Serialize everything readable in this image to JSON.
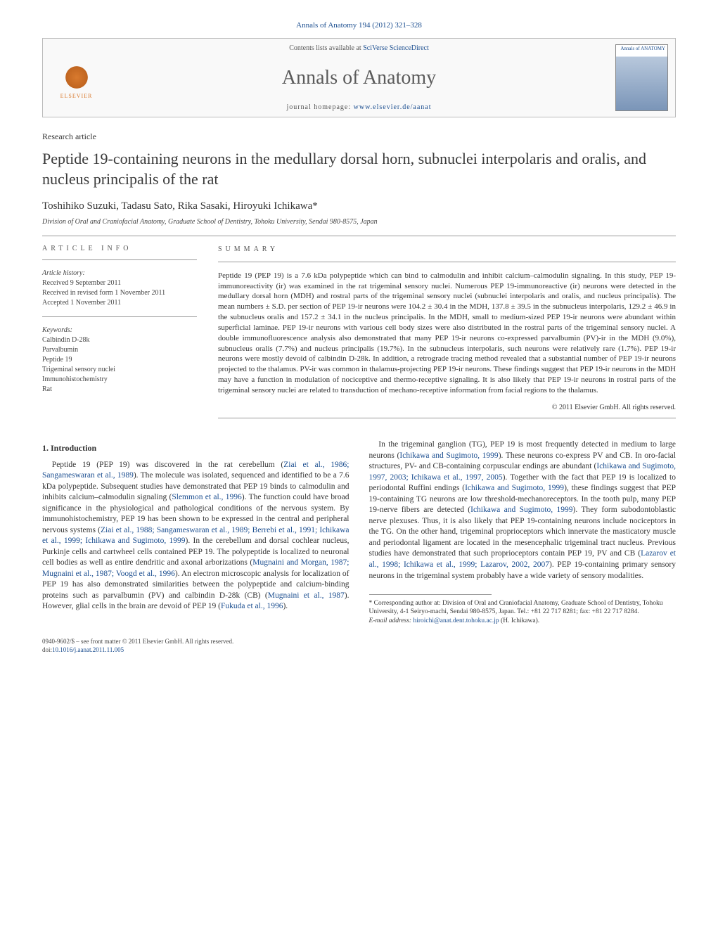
{
  "journal_ref": "Annals of Anatomy 194 (2012) 321–328",
  "header": {
    "contents_prefix": "Contents lists available at ",
    "contents_link": "SciVerse ScienceDirect",
    "journal_title": "Annals of Anatomy",
    "homepage_prefix": "journal homepage: ",
    "homepage_link": "www.elsevier.de/aanat",
    "publisher": "ELSEVIER",
    "cover_label": "Annals of ANATOMY"
  },
  "article_type": "Research article",
  "title": "Peptide 19-containing neurons in the medullary dorsal horn, subnuclei interpolaris and oralis, and nucleus principalis of the rat",
  "authors": "Toshihiko Suzuki, Tadasu Sato, Rika Sasaki, Hiroyuki Ichikawa*",
  "affiliation": "Division of Oral and Craniofacial Anatomy, Graduate School of Dentistry, Tohoku University, Sendai 980-8575, Japan",
  "info": {
    "heading": "article info",
    "history_label": "Article history:",
    "history": [
      "Received 9 September 2011",
      "Received in revised form 1 November 2011",
      "Accepted 1 November 2011"
    ],
    "keywords_label": "Keywords:",
    "keywords": [
      "Calbindin D-28k",
      "Parvalbumin",
      "Peptide 19",
      "Trigeminal sensory nuclei",
      "Immunohistochemistry",
      "Rat"
    ]
  },
  "abstract": {
    "heading": "summary",
    "text": "Peptide 19 (PEP 19) is a 7.6 kDa polypeptide which can bind to calmodulin and inhibit calcium–calmodulin signaling. In this study, PEP 19-immunoreactivity (ir) was examined in the rat trigeminal sensory nuclei. Numerous PEP 19-immunoreactive (ir) neurons were detected in the medullary dorsal horn (MDH) and rostral parts of the trigeminal sensory nuclei (subnuclei interpolaris and oralis, and nucleus principalis). The mean numbers ± S.D. per section of PEP 19-ir neurons were 104.2 ± 30.4 in the MDH, 137.8 ± 39.5 in the subnucleus interpolaris, 129.2 ± 46.9 in the subnucleus oralis and 157.2 ± 34.1 in the nucleus principalis. In the MDH, small to medium-sized PEP 19-ir neurons were abundant within superficial laminae. PEP 19-ir neurons with various cell body sizes were also distributed in the rostral parts of the trigeminal sensory nuclei. A double immunofluorescence analysis also demonstrated that many PEP 19-ir neurons co-expressed parvalbumin (PV)-ir in the MDH (9.0%), subnucleus oralis (7.7%) and nucleus principalis (19.7%). In the subnucleus interpolaris, such neurons were relatively rare (1.7%). PEP 19-ir neurons were mostly devoid of calbindin D-28k. In addition, a retrograde tracing method revealed that a substantial number of PEP 19-ir neurons projected to the thalamus. PV-ir was common in thalamus-projecting PEP 19-ir neurons. These findings suggest that PEP 19-ir neurons in the MDH may have a function in modulation of nociceptive and thermo-receptive signaling. It is also likely that PEP 19-ir neurons in rostral parts of the trigeminal sensory nuclei are related to transduction of mechano-receptive information from facial regions to the thalamus.",
    "copyright": "© 2011 Elsevier GmbH. All rights reserved."
  },
  "body": {
    "section_heading": "1. Introduction",
    "p1_a": "Peptide 19 (PEP 19) was discovered in the rat cerebellum (",
    "p1_link1": "Ziai et al., 1986; Sangameswaran et al., 1989",
    "p1_b": "). The molecule was isolated, sequenced and identified to be a 7.6 kDa polypeptide. Subsequent studies have demonstrated that PEP 19 binds to calmodulin and inhibits calcium–calmodulin signaling (",
    "p1_link2": "Slemmon et al., 1996",
    "p1_c": "). The function could have broad significance in the physiological and pathological conditions of the nervous system. By immunohistochemistry, PEP 19 has been shown to be expressed in the central and peripheral nervous systems (",
    "p1_link3": "Ziai et al., 1988; Sangameswaran et al., 1989; Berrebi et al., 1991; Ichikawa et al., 1999; Ichikawa and Sugimoto, 1999",
    "p1_d": "). In the cerebellum and dorsal cochlear nucleus, Purkinje cells and cartwheel cells contained PEP 19. The polypeptide is localized to neuronal cell bodies as well as entire dendritic and axonal arborizations (",
    "p1_link4": "Mugnaini and Morgan, 1987; Mugnaini et al., 1987; Voogd et al., 1996",
    "p1_e": "). An electron microscopic analysis for localization of PEP 19 has also demonstrated similarities between the polypeptide and calcium-binding proteins such as parvalbumin (PV) and calbindin D-28k (CB) (",
    "p1_link5": "Mugnaini et al., 1987",
    "p1_f": "). However, glial cells in the brain are devoid of PEP 19 (",
    "p1_link6": "Fukuda et al., 1996",
    "p1_g": ").",
    "p2_a": "In the trigeminal ganglion (TG), PEP 19 is most frequently detected in medium to large neurons (",
    "p2_link1": "Ichikawa and Sugimoto, 1999",
    "p2_b": "). These neurons co-express PV and CB. In oro-facial structures, PV- and CB-containing corpuscular endings are abundant (",
    "p2_link2": "Ichikawa and Sugimoto, 1997, 2003; Ichikawa et al., 1997, 2005",
    "p2_c": "). Together with the fact that PEP 19 is localized to periodontal Ruffini endings (",
    "p2_link3": "Ichikawa and Sugimoto, 1999",
    "p2_d": "), these findings suggest that PEP 19-containing TG neurons are low threshold-mechanoreceptors. In the tooth pulp, many PEP 19-nerve fibers are detected (",
    "p2_link4": "Ichikawa and Sugimoto, 1999",
    "p2_e": "). They form subodontoblastic nerve plexuses. Thus, it is also likely that PEP 19-containing neurons include nociceptors in the TG. On the other hand, trigeminal proprioceptors which innervate the masticatory muscle and periodontal ligament are located in the mesencephalic trigeminal tract nucleus. Previous studies have demonstrated that such proprioceptors contain PEP 19, PV and CB (",
    "p2_link5": "Lazarov et al., 1998; Ichikawa et al., 1999; Lazarov, 2002, 2007",
    "p2_f": "). PEP 19-containing primary sensory neurons in the trigeminal system probably have a wide variety of sensory modalities."
  },
  "footnote": {
    "corr_label": "* Corresponding author at: Division of Oral and Craniofacial Anatomy, Graduate School of Dentistry, Tohoku University, 4-1 Seiryo-machi, Sendai 980-8575, Japan. Tel.: +81 22 717 8281; fax: +81 22 717 8284.",
    "email_label": "E-mail address: ",
    "email": "hiroichi@anat.dent.tohoku.ac.jp",
    "email_suffix": " (H. Ichikawa)."
  },
  "footer": {
    "line1": "0940-9602/$ – see front matter © 2011 Elsevier GmbH. All rights reserved.",
    "doi_prefix": "doi:",
    "doi": "10.1016/j.aanat.2011.11.005"
  },
  "colors": {
    "link": "#1a4d8f",
    "text": "#3a3a3a",
    "rule": "#999999",
    "elsevier": "#d97a2e"
  }
}
